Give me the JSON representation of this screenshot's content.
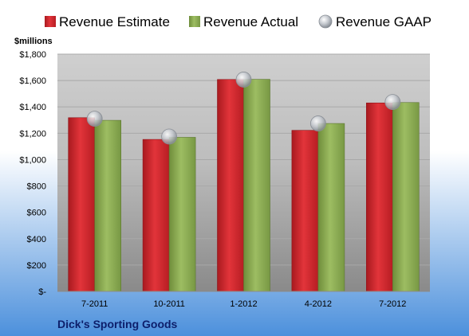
{
  "chart_data": {
    "type": "bar",
    "title": "Dick's Sporting Goods",
    "y_unit_label": "$millions",
    "categories": [
      "7-2011",
      "10-2011",
      "1-2012",
      "4-2012",
      "7-2012"
    ],
    "series": [
      {
        "name": "Revenue Estimate",
        "kind": "bar",
        "color": "#d7262d",
        "values": [
          1318,
          1153,
          1608,
          1222,
          1430
        ]
      },
      {
        "name": "Revenue Actual",
        "kind": "bar",
        "color": "#8fb255",
        "values": [
          1298,
          1169,
          1609,
          1274,
          1433
        ]
      },
      {
        "name": "Revenue GAAP",
        "kind": "marker",
        "color": "#9aa0a8",
        "values": [
          1310,
          1175,
          1607,
          1274,
          1437
        ]
      }
    ],
    "ylim": [
      0,
      1800
    ],
    "yticks": [
      0,
      200,
      400,
      600,
      800,
      1000,
      1200,
      1400,
      1600,
      1800
    ],
    "ytick_labels": [
      "$-",
      "$200",
      "$400",
      "$600",
      "$800",
      "$1,000",
      "$1,200",
      "$1,400",
      "$1,600",
      "$1,800"
    ],
    "grid": true,
    "legend_position": "top"
  }
}
